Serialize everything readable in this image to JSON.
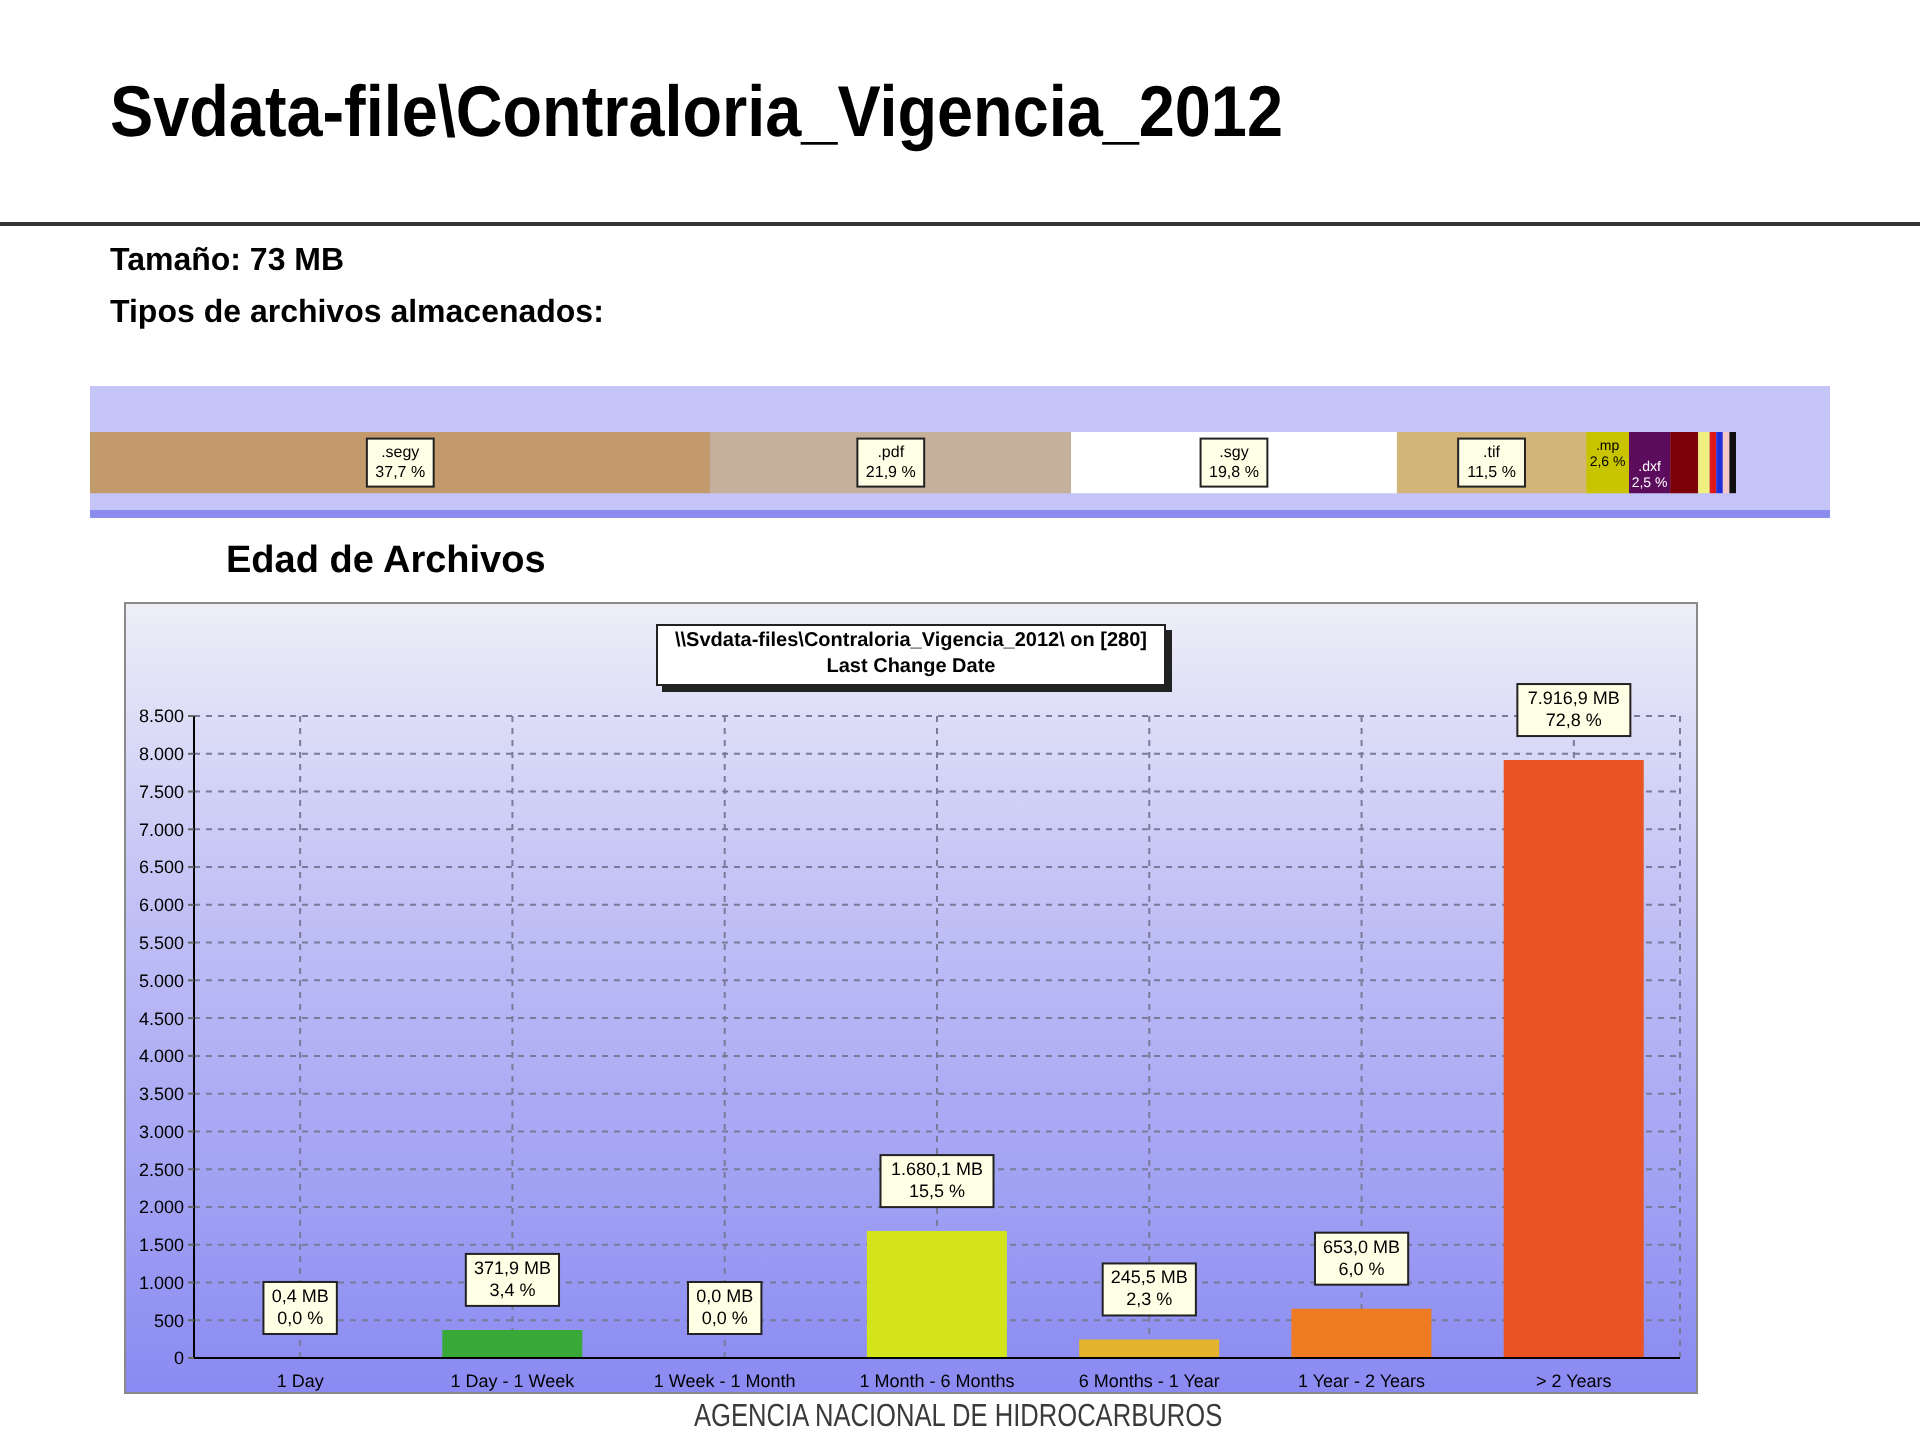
{
  "chart_data": [
    {
      "type": "bar",
      "title": "Svdata-file\\Contraloria_Vigencia_2012",
      "subtitle": "Tamaño: 73 MB",
      "annotations": [
        "Tipos de archivos almacenados:"
      ],
      "orientation": "horizontal",
      "stacked": true,
      "categories": [
        null
      ],
      "xlim": [
        0,
        100
      ],
      "tick_labels": false,
      "series": [
        {
          "name": ".segy",
          "color": "#c39a6c",
          "values": [
            37.7
          ],
          "value_labels": [
            "37,7 %"
          ]
        },
        {
          "name": ".pdf",
          "color": "#c5b09c",
          "values": [
            21.9
          ],
          "value_labels": [
            "21,9 %"
          ]
        },
        {
          "name": ".sgy",
          "color": "#ffffff",
          "values": [
            19.8
          ],
          "value_labels": [
            "19,8 %"
          ]
        },
        {
          "name": ".tif",
          "color": "#d3b57a",
          "values": [
            11.5
          ],
          "value_labels": [
            "11,5 %"
          ]
        },
        {
          "name": ".mp",
          "color": "#c8c400",
          "values": [
            2.6
          ],
          "value_labels": [
            "2,6 %"
          ]
        },
        {
          "name": ".dxf",
          "color": "#5c0c5c",
          "values": [
            2.5
          ],
          "value_labels": [
            "2,5 %"
          ]
        },
        {
          "color": "#7c0008",
          "values": [
            1.7
          ]
        },
        {
          "color": "#f0f080",
          "values": [
            0.7
          ]
        },
        {
          "color": "#e01818",
          "values": [
            0.4
          ]
        },
        {
          "color": "#2030d8",
          "values": [
            0.4
          ]
        },
        {
          "color": "#f4c8c8",
          "values": [
            0.4
          ]
        },
        {
          "color": "#101010",
          "values": [
            0.4
          ]
        }
      ]
    },
    {
      "type": "bar",
      "title": "Edad de Archivos",
      "subtitle": "\\\\Svdata-files\\Contraloria_Vigencia_2012\\ on [280]\nLast Change Date",
      "annotations": [
        "AGENCIA NACIONAL DE HIDROCARBUROS"
      ],
      "categories": [
        "1 Day",
        "1 Day - 1 Week",
        "1 Week - 1 Month",
        "1 Month - 6 Months",
        "6 Months - 1 Year",
        "1 Year - 2 Years",
        "> 2 Years"
      ],
      "values": [
        0.4,
        371.9,
        0.0,
        1680.1,
        245.5,
        653.0,
        7916.9
      ],
      "colors": [
        "#109a10",
        "#38a838",
        "#4e8e10",
        "#d4e41c",
        "#e4b42c",
        "#ee7a22",
        "#ea5424"
      ],
      "value_labels": [
        "0,4 MB\n0,0 %",
        "371,9 MB\n3,4 %",
        "0,0 MB\n0,0 %",
        "1.680,1 MB\n15,5 %",
        "245,5 MB\n2,3 %",
        "653,0 MB\n6,0 %",
        "7.916,9 MB\n72,8 %"
      ],
      "ylim": [
        0,
        8500
      ],
      "yticks": [
        0,
        500,
        {
          "value": 1000,
          "label": "1.000"
        },
        {
          "value": 1500,
          "label": "1.500"
        },
        {
          "value": 2000,
          "label": "2.000"
        },
        {
          "value": 2500,
          "label": "2.500"
        },
        {
          "value": 3000,
          "label": "3.000"
        },
        {
          "value": 3500,
          "label": "3.500"
        },
        {
          "value": 4000,
          "label": "4.000"
        },
        {
          "value": 4500,
          "label": "4.500"
        },
        {
          "value": 5000,
          "label": "5.000"
        },
        {
          "value": 5500,
          "label": "5.500"
        },
        {
          "value": 6000,
          "label": "6.000"
        },
        {
          "value": 6500,
          "label": "6.500"
        },
        {
          "value": 7000,
          "label": "7.000"
        },
        {
          "value": 7500,
          "label": "7.500"
        },
        {
          "value": 8000,
          "label": "8.000"
        },
        {
          "value": 8500,
          "label": "8.500"
        }
      ],
      "grid": true
    }
  ]
}
